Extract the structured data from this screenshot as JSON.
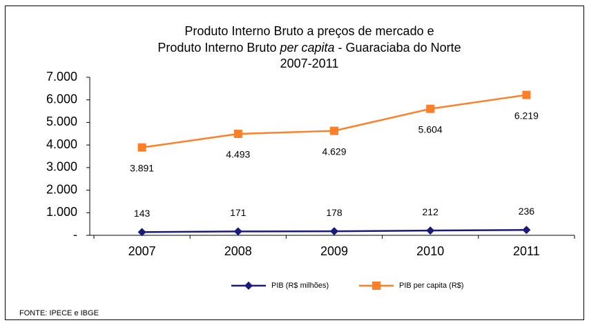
{
  "chart_data": {
    "type": "line",
    "title": {
      "line1": "Produto Interno Bruto a preços de mercado  e",
      "line2": [
        "Produto Interno Bruto",
        "per capita",
        "- Guaraciaba do Norte"
      ],
      "line3": "2007-2011"
    },
    "categories": [
      "2007",
      "2008",
      "2009",
      "2010",
      "2011"
    ],
    "series": [
      {
        "name": "PIB (R$ milhões)",
        "color": "#1a1a7a",
        "marker": "diamond",
        "values": [
          143,
          171,
          178,
          212,
          236
        ]
      },
      {
        "name": "PIB per capita (R$)",
        "color": "#ff7f27",
        "marker": "square",
        "values": [
          3891,
          4493,
          4629,
          5604,
          6219
        ],
        "value_labels": [
          "3.891",
          "4.493",
          "4.629",
          "5.604",
          "6.219"
        ]
      }
    ],
    "ylim": [
      0,
      7000
    ],
    "yticks": [
      {
        "value": 0,
        "label": "-"
      },
      {
        "value": 1000,
        "label": "1.000"
      },
      {
        "value": 2000,
        "label": "2.000"
      },
      {
        "value": 3000,
        "label": "3.000"
      },
      {
        "value": 4000,
        "label": "4.000"
      },
      {
        "value": 5000,
        "label": "5.000"
      },
      {
        "value": 6000,
        "label": "6.000"
      },
      {
        "value": 7000,
        "label": "7.000"
      }
    ],
    "legend": "bottom",
    "source": "FONTE: IPECE e IBGE"
  }
}
